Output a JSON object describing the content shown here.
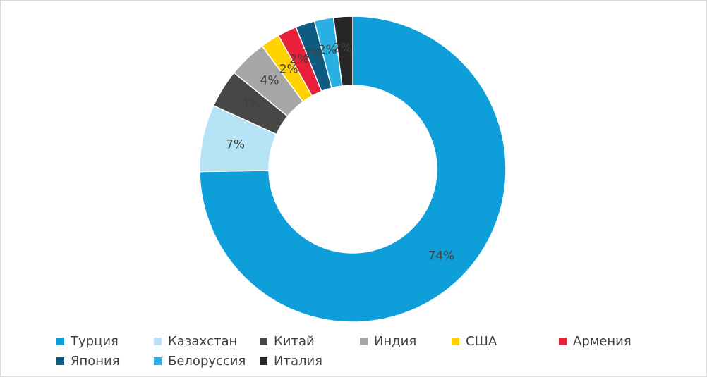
{
  "chart_data": {
    "type": "pie",
    "style": "donut",
    "title": "",
    "labels_format": "percent",
    "categories": [
      "Турция",
      "Казахстан",
      "Китай",
      "Индия",
      "США",
      "Армения",
      "Япония",
      "Белоруссия",
      "Италия"
    ],
    "values": [
      74,
      7,
      4,
      4,
      2,
      2,
      2,
      2,
      2
    ],
    "value_labels": [
      "74%",
      "7%",
      "4%",
      "4%",
      "2%",
      "2%",
      "2%",
      "2%",
      "2%"
    ],
    "colors": [
      "#0e9ed9",
      "#b5e2f5",
      "#474747",
      "#a6a6a6",
      "#ffd200",
      "#e8203a",
      "#0f5a80",
      "#29afe2",
      "#262626"
    ],
    "legend_position": "bottom"
  }
}
